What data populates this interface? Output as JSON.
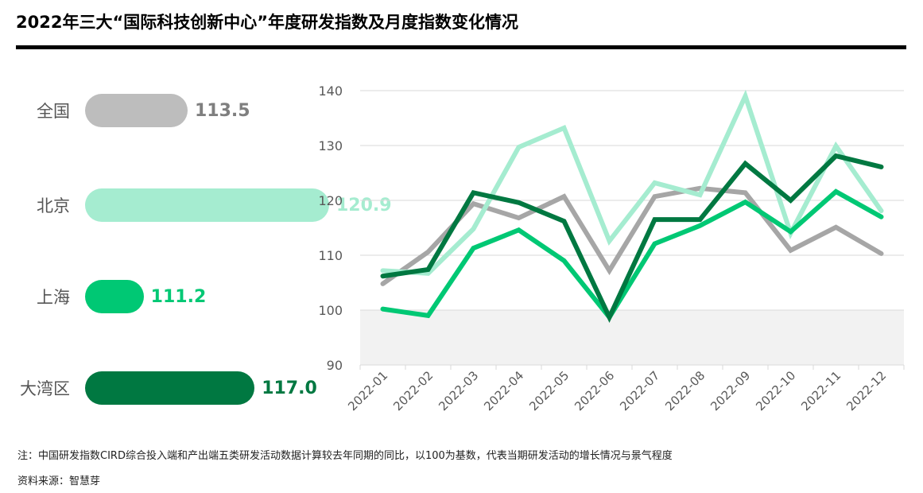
{
  "title": "2022年三大“国际科技创新中心”年度研发指数及月度指数变化情况",
  "annual": [
    {
      "name": "全国",
      "value": "113.5",
      "color": "#bdbdbd",
      "text_color": "#7f7f7f",
      "num": 113.5
    },
    {
      "name": "北京",
      "value": "120.9",
      "color": "#a5ecd0",
      "text_color": "#a5ecd0",
      "num": 120.9
    },
    {
      "name": "上海",
      "value": "111.2",
      "color": "#00c874",
      "text_color": "#00c874",
      "num": 111.2
    },
    {
      "name": "大湾区",
      "value": "117.0",
      "color": "#007841",
      "text_color": "#007841",
      "num": 117.0
    }
  ],
  "chart_data": {
    "type": "line",
    "categories": [
      "2022-01",
      "2022-02",
      "2022-03",
      "2022-04",
      "2022-05",
      "2022-06",
      "2022-07",
      "2022-08",
      "2022-09",
      "2022-10",
      "2022-11",
      "2022-12"
    ],
    "ylim": [
      90,
      140
    ],
    "yticks": [
      "90",
      "100",
      "110",
      "120",
      "130",
      "140"
    ],
    "shaded_below": 100,
    "series": [
      {
        "name": "全国",
        "color": "#a6a6a6",
        "values": [
          104.8,
          110.6,
          119.4,
          116.8,
          120.7,
          107.2,
          120.7,
          122.2,
          121.4,
          110.9,
          115.1,
          110.3
        ]
      },
      {
        "name": "北京",
        "color": "#a5ecd0",
        "values": [
          107.2,
          106.7,
          114.8,
          129.7,
          133.2,
          112.6,
          123.2,
          121.0,
          139.0,
          114.0,
          129.9,
          118.1
        ]
      },
      {
        "name": "上海",
        "color": "#00c874",
        "values": [
          100.2,
          99.0,
          111.3,
          114.6,
          109.0,
          98.7,
          112.1,
          115.4,
          119.7,
          114.3,
          121.6,
          117.0
        ]
      },
      {
        "name": "大湾区",
        "color": "#007841",
        "values": [
          106.2,
          107.4,
          121.4,
          119.6,
          116.2,
          98.7,
          116.5,
          116.5,
          126.7,
          120.0,
          128.1,
          126.1
        ]
      }
    ]
  },
  "note": "注：中国研发指数CIRD综合投入端和产出端五类研发活动数据计算较去年同期的同比，以100为基数，代表当期研发活动的增长情况与景气程度",
  "source": "资料来源：智慧芽"
}
